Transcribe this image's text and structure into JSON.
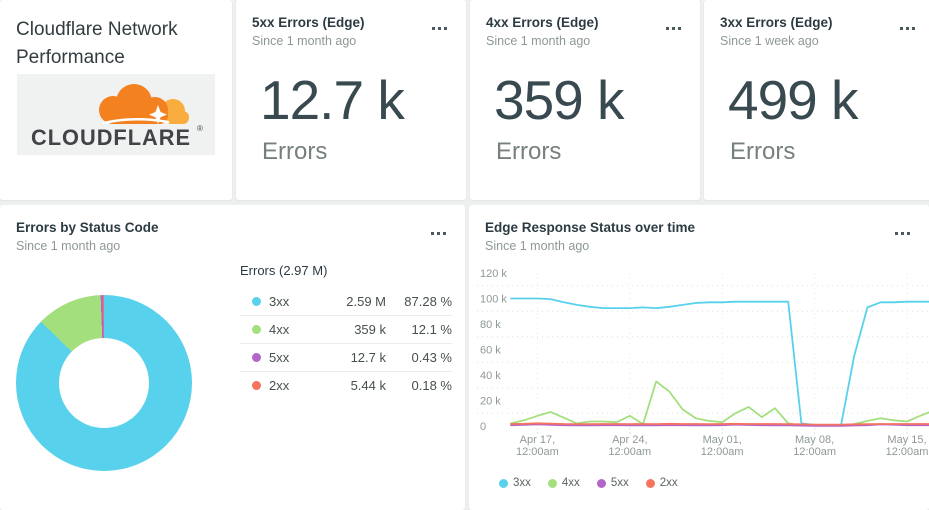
{
  "title_card": {
    "title": "Cloudflare Network Performance",
    "brand": "CLOUDFLARE",
    "reg_mark": "®"
  },
  "summary_cards": [
    {
      "title": "5xx Errors (Edge)",
      "subtitle": "Since 1 month ago",
      "value": "12.7 k",
      "unit": "Errors"
    },
    {
      "title": "4xx Errors (Edge)",
      "subtitle": "Since 1 month ago",
      "value": "359 k",
      "unit": "Errors"
    },
    {
      "title": "3xx Errors (Edge)",
      "subtitle": "Since 1 week ago",
      "value": "499 k",
      "unit": "Errors"
    }
  ],
  "colors": {
    "blue": "#58d1ed",
    "green": "#a3df7d",
    "purple": "#b465c9",
    "orange": "#f4745e",
    "grid": "#dcdfdf",
    "vgrid": "#e7eaea",
    "cloudflare_orange": "#f48120",
    "cloudflare_light_orange": "#faad3f"
  },
  "chart_data": [
    {
      "type": "pie",
      "title": "Errors by Status Code",
      "subtitle": "Since 1 month ago",
      "total_label": "Errors (2.97 M)",
      "donut": true,
      "slices": [
        {
          "label": "3xx",
          "value": "2.59 M",
          "percent": 87.28,
          "percent_label": "87.28 %",
          "color": "#58d1ed"
        },
        {
          "label": "4xx",
          "value": "359 k",
          "percent": 12.1,
          "percent_label": "12.1 %",
          "color": "#a3df7d"
        },
        {
          "label": "5xx",
          "value": "12.7 k",
          "percent": 0.43,
          "percent_label": "0.43 %",
          "color": "#b465c9"
        },
        {
          "label": "2xx",
          "value": "5.44 k",
          "percent": 0.18,
          "percent_label": "0.18 %",
          "color": "#f4745e"
        }
      ]
    },
    {
      "type": "line",
      "title": "Edge Response Status over time",
      "subtitle": "Since 1 month ago",
      "ylim_k": [
        0,
        120
      ],
      "y_ticks": [
        {
          "v": 120,
          "label": "120 k"
        },
        {
          "v": 100,
          "label": "100 k"
        },
        {
          "v": 80,
          "label": "80 k"
        },
        {
          "v": 60,
          "label": "60 k"
        },
        {
          "v": 40,
          "label": "40 k"
        },
        {
          "v": 20,
          "label": "20 k"
        },
        {
          "v": 0,
          "label": "0"
        }
      ],
      "minor_grid_values_k": [
        110,
        90,
        70,
        50,
        30,
        10
      ],
      "x_tick_indices": [
        2,
        9,
        16,
        23,
        30
      ],
      "x_tick_labels": [
        [
          "Apr 17,",
          "12:00am"
        ],
        [
          "Apr 24,",
          "12:00am"
        ],
        [
          "May 01,",
          "12:00am"
        ],
        [
          "May 08,",
          "12:00am"
        ],
        [
          "May 15,",
          "12:00am"
        ]
      ],
      "grid": "dotted",
      "legend_position": "bottom",
      "series": [
        {
          "name": "3xx",
          "color": "#58d1ed",
          "values_k": [
            100,
            100,
            100,
            99.5,
            97,
            95,
            93.5,
            92.5,
            92.5,
            92.5,
            93,
            92.5,
            93.5,
            95,
            96.5,
            97,
            97,
            97.5,
            97.5,
            97.5,
            97.5,
            97.5,
            2,
            0.8,
            0.5,
            0.5,
            55,
            93,
            97,
            97,
            97.5,
            97.5,
            97.5
          ]
        },
        {
          "name": "4xx",
          "color": "#a3df7d",
          "values_k": [
            2,
            4.5,
            8,
            11,
            6.5,
            2,
            3.5,
            3.5,
            3,
            8,
            1.5,
            35,
            27,
            13,
            6,
            4,
            3,
            10,
            15,
            7,
            14,
            2,
            0.5,
            0.3,
            0.3,
            0.3,
            1.5,
            4,
            6,
            4.5,
            3.5,
            8,
            12
          ]
        },
        {
          "name": "5xx",
          "color": "#b465c9",
          "values_k": [
            0.6,
            0.9,
            1.3,
            0.9,
            0.6,
            0.5,
            0.5,
            0.6,
            0.6,
            0.5,
            0.5,
            0.5,
            0.7,
            0.6,
            0.5,
            0.5,
            0.6,
            1.1,
            0.8,
            0.6,
            0.5,
            0.5,
            0.3,
            0.1,
            0.1,
            0.1,
            0.4,
            0.6,
            1.3,
            1,
            0.6,
            0.6,
            0.6
          ]
        },
        {
          "name": "2xx",
          "color": "#f4745e",
          "values_k": [
            1.6,
            1.7,
            2.1,
            1.9,
            1.6,
            1.5,
            1.5,
            1.6,
            1.6,
            1.5,
            1.6,
            1.5,
            1.7,
            1.6,
            1.6,
            1.5,
            1.6,
            1.7,
            1.6,
            1.6,
            1.6,
            1.5,
            1.3,
            1.1,
            1.1,
            1.1,
            1.3,
            1.5,
            1.6,
            1.6,
            1.6,
            1.6,
            1.6
          ]
        }
      ]
    }
  ]
}
